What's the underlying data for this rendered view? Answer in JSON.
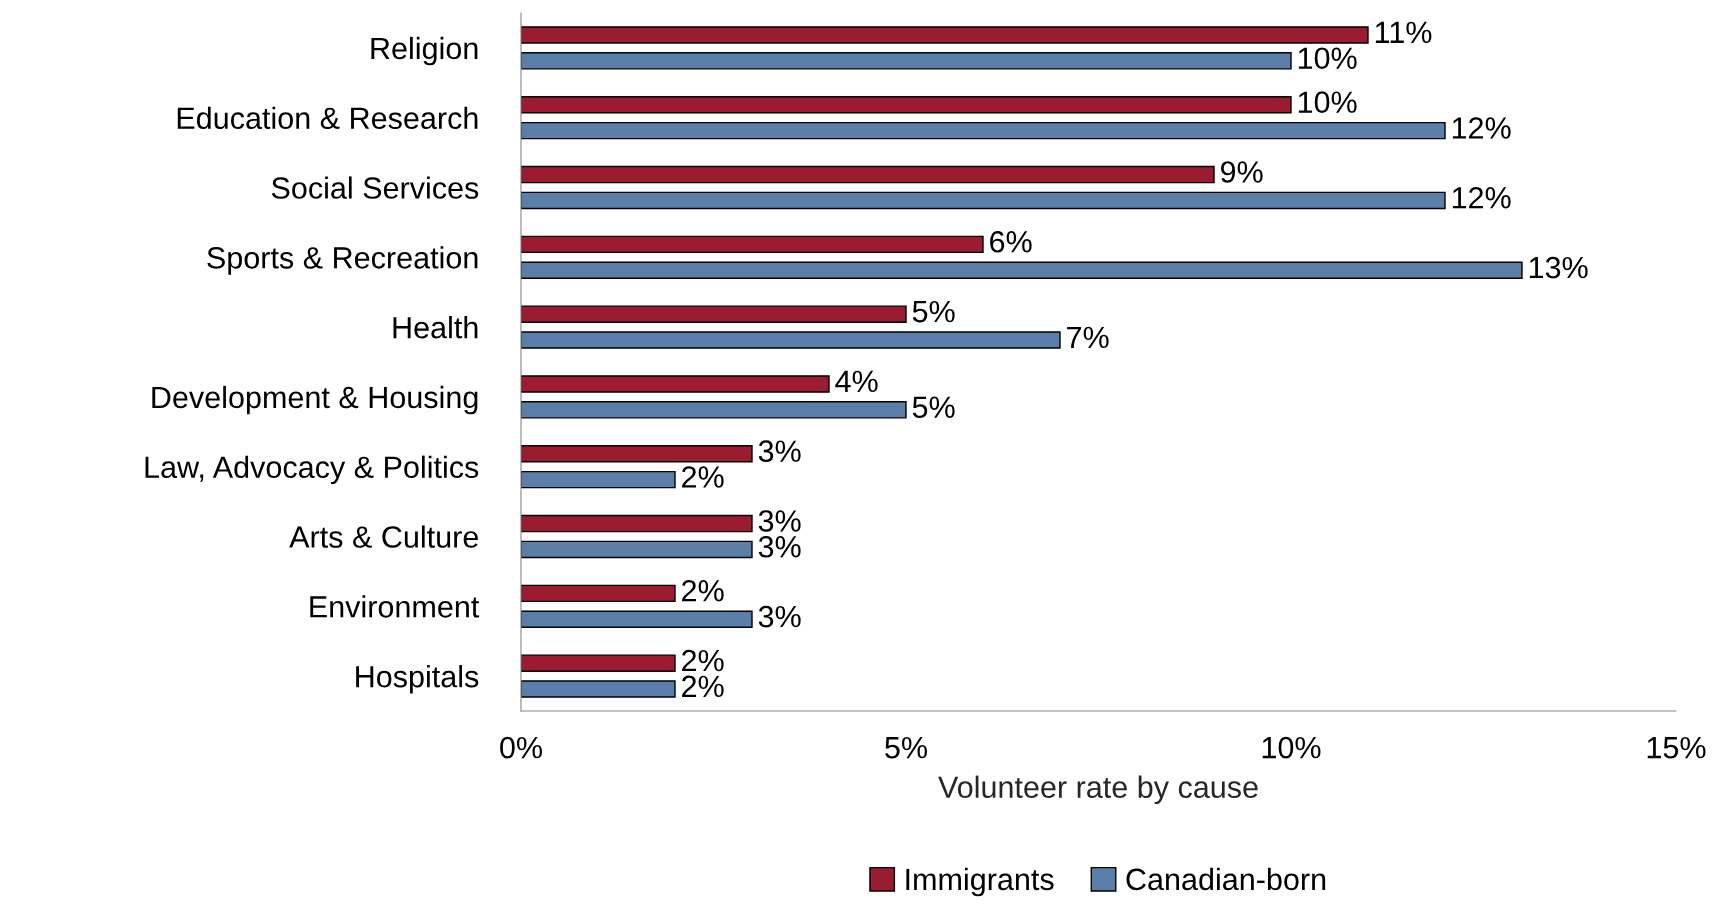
{
  "chart_data": {
    "type": "bar",
    "orientation": "horizontal",
    "xlabel": "Volunteer rate by cause",
    "categories": [
      "Religion",
      "Education & Research",
      "Social Services",
      "Sports & Recreation",
      "Health",
      "Development & Housing",
      "Law, Advocacy & Politics",
      "Arts & Culture",
      "Environment",
      "Hospitals"
    ],
    "series": [
      {
        "name": "Immigrants",
        "color": "#9b1b30",
        "values": [
          11,
          10,
          9,
          6,
          5,
          4,
          3,
          3,
          2,
          2
        ],
        "value_labels": [
          "11%",
          "10%",
          "9%",
          "6%",
          "5%",
          "4%",
          "3%",
          "3%",
          "2%",
          "2%"
        ]
      },
      {
        "name": "Canadian-born",
        "color": "#5b7fa8",
        "values": [
          10,
          12,
          12,
          13,
          7,
          5,
          2,
          3,
          3,
          2
        ],
        "value_labels": [
          "10%",
          "12%",
          "12%",
          "13%",
          "7%",
          "5%",
          "2%",
          "3%",
          "3%",
          "2%"
        ]
      }
    ],
    "xlim": [
      0,
      15
    ],
    "xticks": [
      {
        "value": 0,
        "label": "0%"
      },
      {
        "value": 5,
        "label": "5%"
      },
      {
        "value": 10,
        "label": "10%"
      },
      {
        "value": 15,
        "label": "15%"
      }
    ],
    "grid": false,
    "legend": "bottom"
  }
}
